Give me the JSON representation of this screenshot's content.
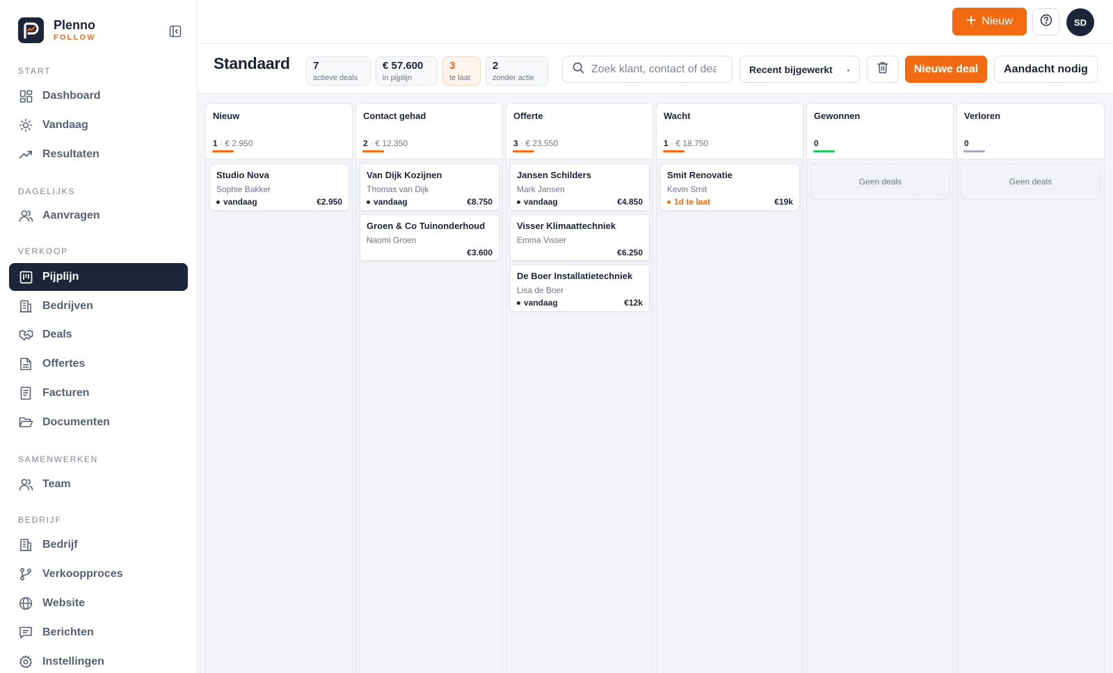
{
  "brand": {
    "name": "Plenno",
    "sub": "FOLLOW"
  },
  "sidebar": {
    "sections": [
      {
        "title": "START",
        "items": [
          {
            "label": "Dashboard",
            "icon": "dashboard-icon"
          },
          {
            "label": "Vandaag",
            "icon": "sun-icon"
          },
          {
            "label": "Resultaten",
            "icon": "trending-up-icon"
          }
        ]
      },
      {
        "title": "DAGELIJKS",
        "items": [
          {
            "label": "Aanvragen",
            "icon": "users-icon"
          }
        ]
      },
      {
        "title": "VERKOOP",
        "items": [
          {
            "label": "Pijplijn",
            "icon": "kanban-icon",
            "active": true
          },
          {
            "label": "Bedrijven",
            "icon": "building-icon"
          },
          {
            "label": "Deals",
            "icon": "handshake-icon"
          },
          {
            "label": "Offertes",
            "icon": "file-text-icon"
          },
          {
            "label": "Facturen",
            "icon": "receipt-icon"
          },
          {
            "label": "Documenten",
            "icon": "folder-open-icon"
          }
        ]
      },
      {
        "title": "SAMENWERKEN",
        "items": [
          {
            "label": "Team",
            "icon": "users-icon"
          }
        ]
      },
      {
        "title": "BEDRIJF",
        "items": [
          {
            "label": "Bedrijf",
            "icon": "building-icon"
          },
          {
            "label": "Verkoopproces",
            "icon": "git-branch-icon"
          },
          {
            "label": "Website",
            "icon": "globe-icon"
          },
          {
            "label": "Berichten",
            "icon": "message-icon"
          },
          {
            "label": "Instellingen",
            "icon": "gear-icon"
          }
        ]
      }
    ]
  },
  "topbar": {
    "new_label": "Nieuw",
    "avatar_initials": "SD"
  },
  "header": {
    "title": "Standaard",
    "stats": [
      {
        "value": "7",
        "label": "actieve deals"
      },
      {
        "value": "€ 57.600",
        "label": "in pijplijn"
      },
      {
        "value": "3",
        "label": "te laat",
        "warn": true
      },
      {
        "value": "2",
        "label": "zonder actie"
      }
    ],
    "search": {
      "placeholder": "Zoek klant, contact of deal",
      "value": ""
    },
    "sort": {
      "selected": "Recent bijgewerkt"
    },
    "new_deal_label": "Nieuwe deal",
    "attention_label": "Aandacht nodig"
  },
  "colors": {
    "accent": "#f26b12",
    "navy": "#1d2639",
    "won": "#22c55e",
    "lost": "#a3a9b4"
  },
  "board": {
    "columns": [
      {
        "title": "Nieuw",
        "count": "1",
        "total": "€ 2.950",
        "bar": "#f26b12",
        "cards": [
          {
            "title": "Studio Nova",
            "contact": "Sophie Bakker",
            "status": "vandaag",
            "late": false,
            "amount": "€2.950"
          }
        ]
      },
      {
        "title": "Contact gehad",
        "count": "2",
        "total": "€ 12.350",
        "bar": "#f26b12",
        "cards": [
          {
            "title": "Van Dijk Kozijnen",
            "contact": "Thomas van Dijk",
            "status": "vandaag",
            "late": false,
            "amount": "€8.750"
          },
          {
            "title": "Groen & Co Tuinonderhoud",
            "contact": "Naomi Groen",
            "status": "",
            "late": false,
            "amount": "€3.600"
          }
        ]
      },
      {
        "title": "Offerte",
        "count": "3",
        "total": "€ 23.550",
        "bar": "#f26b12",
        "cards": [
          {
            "title": "Jansen Schilders",
            "contact": "Mark Jansen",
            "status": "vandaag",
            "late": false,
            "amount": "€4.850"
          },
          {
            "title": "Visser Klimaattechniek",
            "contact": "Emma Visser",
            "status": "",
            "late": false,
            "amount": "€6.250"
          },
          {
            "title": "De Boer Installatietechniek",
            "contact": "Lisa de Boer",
            "status": "vandaag",
            "late": false,
            "amount": "€12k"
          }
        ]
      },
      {
        "title": "Wacht",
        "count": "1",
        "total": "€ 18.750",
        "bar": "#f26b12",
        "cards": [
          {
            "title": "Smit Renovatie",
            "contact": "Kevin Smit",
            "status": "1d te laat",
            "late": true,
            "amount": "€19k"
          }
        ]
      },
      {
        "title": "Gewonnen",
        "count": "0",
        "total": "",
        "bar": "#22c55e",
        "cards": [],
        "empty": "Geen deals"
      },
      {
        "title": "Verloren",
        "count": "0",
        "total": "",
        "bar": "#a3a9b4",
        "cards": [],
        "empty": "Geen deals"
      }
    ]
  }
}
